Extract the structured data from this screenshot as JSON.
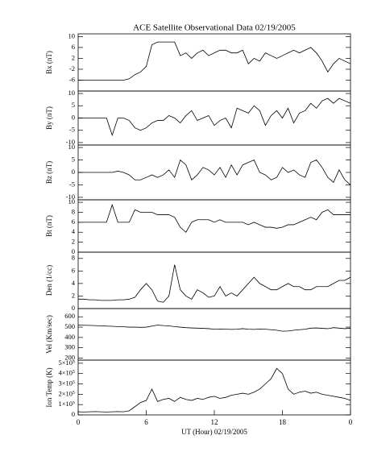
{
  "chart_data": [
    {
      "type": "line",
      "title": "ACE Satellite Observational Data   02/19/2005",
      "y_label": "Bx (nT)",
      "xlim": [
        0,
        24
      ],
      "ylim": [
        -10,
        11
      ],
      "yticks": [
        -6,
        -2,
        2,
        6,
        10
      ],
      "color": "#000000",
      "x": [
        0,
        0.5,
        1,
        1.5,
        2,
        2.5,
        3,
        3.5,
        4,
        4.5,
        5,
        5.5,
        6,
        6.5,
        7,
        7.5,
        8,
        8.5,
        9,
        9.5,
        10,
        10.5,
        11,
        11.5,
        12,
        12.5,
        13,
        13.5,
        14,
        14.5,
        15,
        15.5,
        16,
        16.5,
        17,
        17.5,
        18,
        18.5,
        19,
        19.5,
        20,
        20.5,
        21,
        21.5,
        22,
        22.5,
        23,
        23.5,
        24
      ],
      "values": [
        -6,
        -6,
        -6,
        -6,
        -6,
        -6,
        -6,
        -6,
        -6,
        -5.5,
        -4,
        -3,
        -1,
        7,
        8,
        8,
        8,
        8,
        3,
        4,
        2,
        4,
        5,
        3,
        4,
        5,
        5,
        4,
        4,
        5,
        0,
        2,
        1,
        4,
        3,
        2,
        3,
        4,
        5,
        4,
        5,
        6,
        4,
        1,
        -3,
        0,
        2,
        1,
        0
      ]
    },
    {
      "type": "line",
      "y_label": "By (nT)",
      "xlim": [
        0,
        24
      ],
      "ylim": [
        -11,
        11
      ],
      "yticks": [
        -10,
        -5,
        0,
        5,
        10
      ],
      "color": "#000000",
      "x": [
        0,
        0.5,
        1,
        1.5,
        2,
        2.5,
        3,
        3.5,
        4,
        4.5,
        5,
        5.5,
        6,
        6.5,
        7,
        7.5,
        8,
        8.5,
        9,
        9.5,
        10,
        10.5,
        11,
        11.5,
        12,
        12.5,
        13,
        13.5,
        14,
        14.5,
        15,
        15.5,
        16,
        16.5,
        17,
        17.5,
        18,
        18.5,
        19,
        19.5,
        20,
        20.5,
        21,
        21.5,
        22,
        22.5,
        23,
        23.5,
        24
      ],
      "values": [
        0,
        0,
        0,
        0,
        0,
        0,
        -7,
        0,
        0,
        -1,
        -4,
        -5,
        -4,
        -2,
        -1,
        -1,
        1,
        0,
        -2,
        1,
        3,
        -1,
        0,
        1,
        -3,
        -1,
        0,
        -4,
        4,
        3,
        2,
        5,
        3,
        -3,
        1,
        3,
        0,
        4,
        -2,
        2,
        3,
        6,
        4,
        7,
        8,
        6,
        8,
        7,
        6
      ]
    },
    {
      "type": "line",
      "y_label": "Bz (nT)",
      "xlim": [
        0,
        24
      ],
      "ylim": [
        -11,
        11
      ],
      "yticks": [
        -10,
        -5,
        0,
        5,
        10
      ],
      "color": "#000000",
      "x": [
        0,
        0.5,
        1,
        1.5,
        2,
        2.5,
        3,
        3.5,
        4,
        4.5,
        5,
        5.5,
        6,
        6.5,
        7,
        7.5,
        8,
        8.5,
        9,
        9.5,
        10,
        10.5,
        11,
        11.5,
        12,
        12.5,
        13,
        13.5,
        14,
        14.5,
        15,
        15.5,
        16,
        16.5,
        17,
        17.5,
        18,
        18.5,
        19,
        19.5,
        20,
        20.5,
        21,
        21.5,
        22,
        22.5,
        23,
        23.5,
        24
      ],
      "values": [
        0,
        0,
        0,
        0,
        0,
        0,
        0,
        0.5,
        0,
        -1,
        -3,
        -3,
        -2,
        -1,
        -2,
        -1,
        1,
        -2,
        5,
        3,
        -3,
        -1,
        2,
        1,
        -1,
        2,
        -2,
        3,
        -1,
        3,
        4,
        5,
        0,
        -1,
        -3,
        -2,
        2,
        0,
        1,
        -1,
        -2,
        4,
        5,
        2,
        -2,
        -4,
        1,
        -3,
        -5
      ]
    },
    {
      "type": "line",
      "y_label": "Bt (nT)",
      "xlim": [
        0,
        24
      ],
      "ylim": [
        0,
        10.5
      ],
      "yticks": [
        0,
        2,
        4,
        6,
        8,
        10
      ],
      "color": "#000000",
      "x": [
        0,
        0.5,
        1,
        1.5,
        2,
        2.5,
        3,
        3.5,
        4,
        4.5,
        5,
        5.5,
        6,
        6.5,
        7,
        7.5,
        8,
        8.5,
        9,
        9.5,
        10,
        10.5,
        11,
        11.5,
        12,
        12.5,
        13,
        13.5,
        14,
        14.5,
        15,
        15.5,
        16,
        16.5,
        17,
        17.5,
        18,
        18.5,
        19,
        19.5,
        20,
        20.5,
        21,
        21.5,
        22,
        22.5,
        23,
        23.5,
        24
      ],
      "values": [
        6,
        6,
        6,
        6,
        6,
        6,
        9.5,
        6,
        6,
        6,
        8.5,
        8,
        8,
        8,
        7.5,
        7.5,
        7.5,
        7,
        5,
        4,
        6,
        6.5,
        6.5,
        6.5,
        6,
        6.5,
        6,
        6,
        6,
        6,
        5.5,
        6,
        5.5,
        5,
        5,
        4.8,
        5,
        5.5,
        5.5,
        6,
        6.5,
        7,
        6.5,
        8,
        8.5,
        7.5,
        7.5,
        7.5,
        7.5
      ]
    },
    {
      "type": "line",
      "y_label": "Den (1/cc)",
      "xlim": [
        0,
        24
      ],
      "ylim": [
        0,
        9
      ],
      "yticks": [
        0,
        2,
        4,
        6,
        8
      ],
      "color": "#000000",
      "x": [
        0,
        0.5,
        1,
        1.5,
        2,
        2.5,
        3,
        3.5,
        4,
        4.5,
        5,
        5.5,
        6,
        6.5,
        7,
        7.5,
        8,
        8.5,
        9,
        9.5,
        10,
        10.5,
        11,
        11.5,
        12,
        12.5,
        13,
        13.5,
        14,
        14.5,
        15,
        15.5,
        16,
        16.5,
        17,
        17.5,
        18,
        18.5,
        19,
        19.5,
        20,
        20.5,
        21,
        21.5,
        22,
        22.5,
        23,
        23.5,
        24
      ],
      "values": [
        1.5,
        1.5,
        1.4,
        1.4,
        1.3,
        1.3,
        1.3,
        1.4,
        1.4,
        1.5,
        1.8,
        3,
        4,
        3,
        1.2,
        1,
        2,
        7,
        3,
        2,
        1.5,
        3,
        2.5,
        1.8,
        2,
        3.5,
        2,
        2.5,
        2,
        3,
        4,
        5,
        4,
        3.5,
        3,
        3,
        3.5,
        4,
        3.5,
        3.5,
        3,
        3,
        3.5,
        3.5,
        3.5,
        4,
        4.5,
        4.5,
        5
      ]
    },
    {
      "type": "line",
      "y_label": "Vel (Km/sec)",
      "xlim": [
        0,
        24
      ],
      "ylim": [
        180,
        680
      ],
      "yticks": [
        200,
        300,
        400,
        500,
        600
      ],
      "color": "#000000",
      "x": [
        0,
        0.5,
        1,
        1.5,
        2,
        2.5,
        3,
        3.5,
        4,
        4.5,
        5,
        5.5,
        6,
        6.5,
        7,
        7.5,
        8,
        8.5,
        9,
        9.5,
        10,
        10.5,
        11,
        11.5,
        12,
        12.5,
        13,
        13.5,
        14,
        14.5,
        15,
        15.5,
        16,
        16.5,
        17,
        17.5,
        18,
        18.5,
        19,
        19.5,
        20,
        20.5,
        21,
        21.5,
        22,
        22.5,
        23,
        23.5,
        24
      ],
      "values": [
        520,
        518,
        517,
        515,
        512,
        510,
        508,
        505,
        503,
        500,
        500,
        498,
        500,
        510,
        520,
        515,
        512,
        505,
        500,
        495,
        492,
        490,
        488,
        485,
        480,
        482,
        480,
        478,
        480,
        485,
        480,
        478,
        482,
        480,
        475,
        470,
        460,
        462,
        470,
        475,
        480,
        490,
        492,
        488,
        485,
        495,
        490,
        485,
        490
      ]
    },
    {
      "type": "line",
      "y_label": "Ion Temp (K)",
      "x_label": "UT (Hour)   02/19/2005",
      "xlim": [
        0,
        24
      ],
      "xticks": [
        0,
        6,
        12,
        18,
        {
          "value": 24,
          "label": "0"
        }
      ],
      "ylim": [
        0,
        530000
      ],
      "yticks": [
        0,
        {
          "value": 100000,
          "label": "1×10⁵"
        },
        {
          "value": 200000,
          "label": "2×10⁵"
        },
        {
          "value": 300000,
          "label": "3×10⁵"
        },
        {
          "value": 400000,
          "label": "4×10⁵"
        },
        {
          "value": 500000,
          "label": "5×10⁵"
        }
      ],
      "color": "#000000",
      "x": [
        0,
        0.5,
        1,
        1.5,
        2,
        2.5,
        3,
        3.5,
        4,
        4.5,
        5,
        5.5,
        6,
        6.5,
        7,
        7.5,
        8,
        8.5,
        9,
        9.5,
        10,
        10.5,
        11,
        11.5,
        12,
        12.5,
        13,
        13.5,
        14,
        14.5,
        15,
        15.5,
        16,
        16.5,
        17,
        17.5,
        18,
        18.5,
        19,
        19.5,
        20,
        20.5,
        21,
        21.5,
        22,
        22.5,
        23,
        23.5,
        24
      ],
      "values": [
        30000,
        28000,
        30000,
        32000,
        30000,
        28000,
        30000,
        32000,
        30000,
        40000,
        80000,
        120000,
        140000,
        250000,
        130000,
        150000,
        160000,
        130000,
        170000,
        150000,
        140000,
        160000,
        150000,
        170000,
        180000,
        160000,
        170000,
        190000,
        200000,
        210000,
        200000,
        220000,
        250000,
        300000,
        350000,
        450000,
        400000,
        250000,
        200000,
        220000,
        230000,
        210000,
        220000,
        200000,
        190000,
        180000,
        170000,
        160000,
        140000
      ]
    }
  ]
}
